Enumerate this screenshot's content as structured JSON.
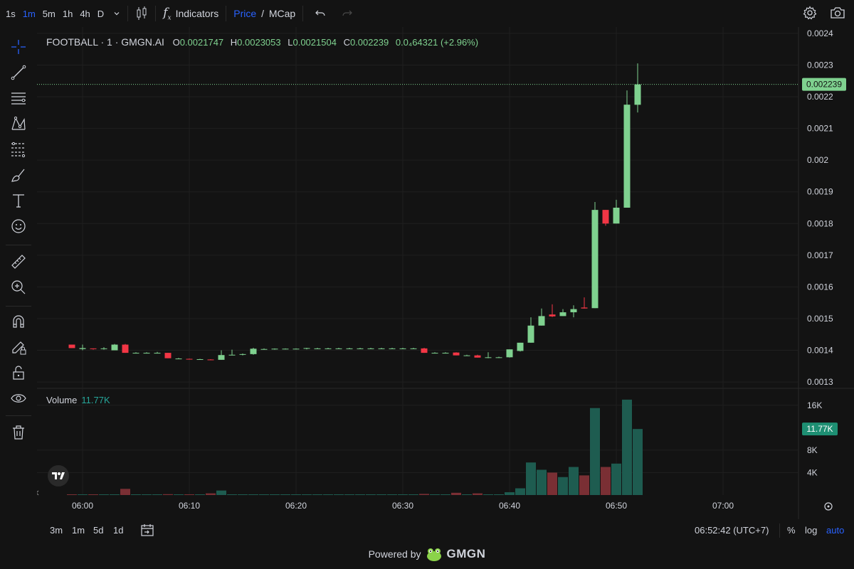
{
  "toolbar": {
    "timeframes": [
      "1s",
      "1m",
      "5m",
      "1h",
      "4h",
      "D"
    ],
    "active_timeframe": "1m",
    "indicators_label": "Indicators",
    "price_label": "Price",
    "slash": "/",
    "mcap_label": "MCap"
  },
  "legend": {
    "symbol": "FOOTBALL · 1 · GMGN.AI",
    "o_key": "O",
    "o_val": "0.0021747",
    "h_key": "H",
    "h_val": "0.0023053",
    "l_key": "L",
    "l_val": "0.0021504",
    "c_key": "C",
    "c_val": "0.002239",
    "change": "0.0₄64321 (+2.96%)"
  },
  "volume_legend": {
    "label": "Volume",
    "value": "11.77K"
  },
  "price_axis": {
    "ticks": [
      "0.0024",
      "0.0023",
      "0.0022",
      "0.0021",
      "0.002",
      "0.0019",
      "0.0018",
      "0.0017",
      "0.0016",
      "0.0015",
      "0.0014",
      "0.0013"
    ],
    "current_price_label": "0.002239"
  },
  "volume_axis": {
    "ticks": [
      "16K",
      "8K",
      "4K"
    ],
    "current_volume_label": "11.77K"
  },
  "time_axis": {
    "ticks": [
      "06:00",
      "06:10",
      "06:20",
      "06:30",
      "06:40",
      "06:50",
      "07:00"
    ]
  },
  "bottom": {
    "ranges": [
      "3m",
      "1m",
      "5d",
      "1d"
    ],
    "clock": "06:52:42 (UTC+7)",
    "percent": "%",
    "log": "log",
    "auto": "auto"
  },
  "footer": {
    "powered_by": "Powered by",
    "brand": "GMGN"
  },
  "colors": {
    "up": "#7fd18f",
    "down": "#f23645",
    "vol_up": "#1e5c50",
    "vol_down": "#7a2f34",
    "accent": "#2962ff"
  },
  "chart_data": {
    "type": "candlestick",
    "x_unit": "time",
    "ylim": [
      0.00128,
      0.00242
    ],
    "series": [
      {
        "t": "05:59",
        "o": 0.001418,
        "h": 0.001418,
        "l": 0.001407,
        "c": 0.001407,
        "v": 100
      },
      {
        "t": "06:00",
        "o": 0.001404,
        "h": 0.001418,
        "l": 0.0014,
        "c": 0.001407,
        "v": 50
      },
      {
        "t": "06:01",
        "o": 0.001406,
        "h": 0.001406,
        "l": 0.001402,
        "c": 0.001404,
        "v": 40
      },
      {
        "t": "06:02",
        "o": 0.001404,
        "h": 0.00141,
        "l": 0.001402,
        "c": 0.001406,
        "v": 40
      },
      {
        "t": "06:03",
        "o": 0.0014,
        "h": 0.00142,
        "l": 0.0014,
        "c": 0.001418,
        "v": 100
      },
      {
        "t": "06:04",
        "o": 0.001418,
        "h": 0.00142,
        "l": 0.001392,
        "c": 0.001392,
        "v": 1100
      },
      {
        "t": "06:05",
        "o": 0.001392,
        "h": 0.001394,
        "l": 0.00139,
        "c": 0.001392,
        "v": 30
      },
      {
        "t": "06:06",
        "o": 0.001392,
        "h": 0.001394,
        "l": 0.00139,
        "c": 0.001392,
        "v": 30
      },
      {
        "t": "06:07",
        "o": 0.001392,
        "h": 0.001395,
        "l": 0.00139,
        "c": 0.001392,
        "v": 30
      },
      {
        "t": "06:08",
        "o": 0.001392,
        "h": 0.001392,
        "l": 0.001375,
        "c": 0.001375,
        "v": 150
      },
      {
        "t": "06:09",
        "o": 0.001374,
        "h": 0.001376,
        "l": 0.001372,
        "c": 0.001374,
        "v": 30
      },
      {
        "t": "06:10",
        "o": 0.001373,
        "h": 0.001374,
        "l": 0.001371,
        "c": 0.001371,
        "v": 100
      },
      {
        "t": "06:11",
        "o": 0.001371,
        "h": 0.001373,
        "l": 0.00137,
        "c": 0.001372,
        "v": 40
      },
      {
        "t": "06:12",
        "o": 0.001371,
        "h": 0.001372,
        "l": 0.001369,
        "c": 0.00137,
        "v": 300
      },
      {
        "t": "06:13",
        "o": 0.00137,
        "h": 0.0014,
        "l": 0.00137,
        "c": 0.001385,
        "v": 800
      },
      {
        "t": "06:14",
        "o": 0.001385,
        "h": 0.001402,
        "l": 0.001384,
        "c": 0.001386,
        "v": 100
      },
      {
        "t": "06:15",
        "o": 0.001386,
        "h": 0.00139,
        "l": 0.001384,
        "c": 0.001388,
        "v": 30
      },
      {
        "t": "06:16",
        "o": 0.001388,
        "h": 0.001408,
        "l": 0.001386,
        "c": 0.001405,
        "v": 100
      },
      {
        "t": "06:17",
        "o": 0.001404,
        "h": 0.001406,
        "l": 0.001402,
        "c": 0.001404,
        "v": 30
      },
      {
        "t": "06:18",
        "o": 0.001404,
        "h": 0.001406,
        "l": 0.001402,
        "c": 0.001405,
        "v": 30
      },
      {
        "t": "06:19",
        "o": 0.001405,
        "h": 0.001406,
        "l": 0.001403,
        "c": 0.001405,
        "v": 30
      },
      {
        "t": "06:20",
        "o": 0.001405,
        "h": 0.001406,
        "l": 0.001403,
        "c": 0.001405,
        "v": 30
      },
      {
        "t": "06:21",
        "o": 0.001405,
        "h": 0.001408,
        "l": 0.001403,
        "c": 0.001407,
        "v": 60
      },
      {
        "t": "06:22",
        "o": 0.001406,
        "h": 0.001408,
        "l": 0.001404,
        "c": 0.001406,
        "v": 30
      },
      {
        "t": "06:23",
        "o": 0.001406,
        "h": 0.001408,
        "l": 0.001404,
        "c": 0.001406,
        "v": 30
      },
      {
        "t": "06:24",
        "o": 0.001406,
        "h": 0.001408,
        "l": 0.001404,
        "c": 0.001406,
        "v": 30
      },
      {
        "t": "06:25",
        "o": 0.001406,
        "h": 0.001408,
        "l": 0.001404,
        "c": 0.001406,
        "v": 30
      },
      {
        "t": "06:26",
        "o": 0.001406,
        "h": 0.001408,
        "l": 0.001404,
        "c": 0.001406,
        "v": 30
      },
      {
        "t": "06:27",
        "o": 0.001406,
        "h": 0.001408,
        "l": 0.001404,
        "c": 0.001406,
        "v": 30
      },
      {
        "t": "06:28",
        "o": 0.001406,
        "h": 0.001408,
        "l": 0.001404,
        "c": 0.001406,
        "v": 30
      },
      {
        "t": "06:29",
        "o": 0.001406,
        "h": 0.001408,
        "l": 0.001404,
        "c": 0.001406,
        "v": 30
      },
      {
        "t": "06:30",
        "o": 0.001406,
        "h": 0.001408,
        "l": 0.001404,
        "c": 0.001406,
        "v": 30
      },
      {
        "t": "06:31",
        "o": 0.001406,
        "h": 0.001408,
        "l": 0.001404,
        "c": 0.001406,
        "v": 30
      },
      {
        "t": "06:32",
        "o": 0.001406,
        "h": 0.001408,
        "l": 0.001392,
        "c": 0.001392,
        "v": 200
      },
      {
        "t": "06:33",
        "o": 0.001392,
        "h": 0.001394,
        "l": 0.00139,
        "c": 0.001392,
        "v": 30
      },
      {
        "t": "06:34",
        "o": 0.001392,
        "h": 0.001394,
        "l": 0.00139,
        "c": 0.001392,
        "v": 30
      },
      {
        "t": "06:35",
        "o": 0.001393,
        "h": 0.001394,
        "l": 0.001384,
        "c": 0.001384,
        "v": 400
      },
      {
        "t": "06:36",
        "o": 0.001384,
        "h": 0.001386,
        "l": 0.001382,
        "c": 0.001384,
        "v": 30
      },
      {
        "t": "06:37",
        "o": 0.001384,
        "h": 0.001386,
        "l": 0.001377,
        "c": 0.001377,
        "v": 300
      },
      {
        "t": "06:38",
        "o": 0.001377,
        "h": 0.001394,
        "l": 0.001375,
        "c": 0.001378,
        "v": 100
      },
      {
        "t": "06:39",
        "o": 0.001378,
        "h": 0.00138,
        "l": 0.001376,
        "c": 0.001378,
        "v": 30
      },
      {
        "t": "06:40",
        "o": 0.001378,
        "h": 0.001403,
        "l": 0.001377,
        "c": 0.001403,
        "v": 500
      },
      {
        "t": "06:41",
        "o": 0.001398,
        "h": 0.001424,
        "l": 0.001396,
        "c": 0.001424,
        "v": 1200
      },
      {
        "t": "06:42",
        "o": 0.001424,
        "h": 0.001504,
        "l": 0.001424,
        "c": 0.001478,
        "v": 5800
      },
      {
        "t": "06:43",
        "o": 0.001478,
        "h": 0.001532,
        "l": 0.001478,
        "c": 0.001508,
        "v": 4500
      },
      {
        "t": "06:44",
        "o": 0.001513,
        "h": 0.001545,
        "l": 0.001505,
        "c": 0.001507,
        "v": 4000
      },
      {
        "t": "06:45",
        "o": 0.001508,
        "h": 0.00153,
        "l": 0.001508,
        "c": 0.00152,
        "v": 3200
      },
      {
        "t": "06:46",
        "o": 0.00152,
        "h": 0.001542,
        "l": 0.001504,
        "c": 0.00153,
        "v": 5000
      },
      {
        "t": "06:47",
        "o": 0.001535,
        "h": 0.001567,
        "l": 0.001532,
        "c": 0.001532,
        "v": 3500
      },
      {
        "t": "06:48",
        "o": 0.001533,
        "h": 0.001868,
        "l": 0.001533,
        "c": 0.001843,
        "v": 15500
      },
      {
        "t": "06:49",
        "o": 0.001843,
        "h": 0.001843,
        "l": 0.001793,
        "c": 0.0018,
        "v": 5000
      },
      {
        "t": "06:50",
        "o": 0.0018,
        "h": 0.001875,
        "l": 0.0018,
        "c": 0.00185,
        "v": 5600
      },
      {
        "t": "06:51",
        "o": 0.00185,
        "h": 0.00222,
        "l": 0.00185,
        "c": 0.002175,
        "v": 17000
      },
      {
        "t": "06:52",
        "o": 0.0021747,
        "h": 0.0023053,
        "l": 0.0021504,
        "c": 0.002239,
        "v": 11770
      }
    ]
  }
}
